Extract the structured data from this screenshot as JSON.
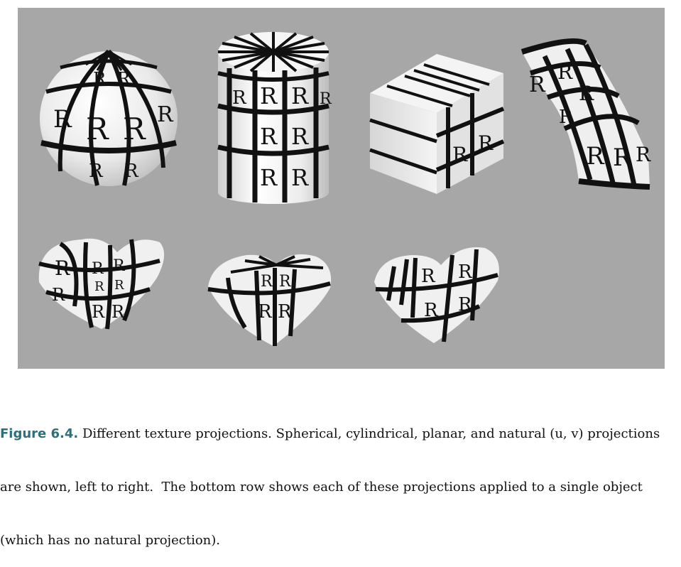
{
  "figure": {
    "label": "Figure 6.4.",
    "caption_line1": " Different texture projections. Spherical, cylindrical, planar, and natural (u, v) projections",
    "caption_line2": "are shown, left to right.  The bottom row shows each of these projections applied to a single object",
    "caption_line3": "(which has no natural projection).",
    "texture_letter": "R",
    "colors": {
      "panel_background": "#a7a7a7",
      "surface": "#f2f2f2",
      "stripe": "#111111",
      "caption_label": "#2d6f7a"
    }
  }
}
